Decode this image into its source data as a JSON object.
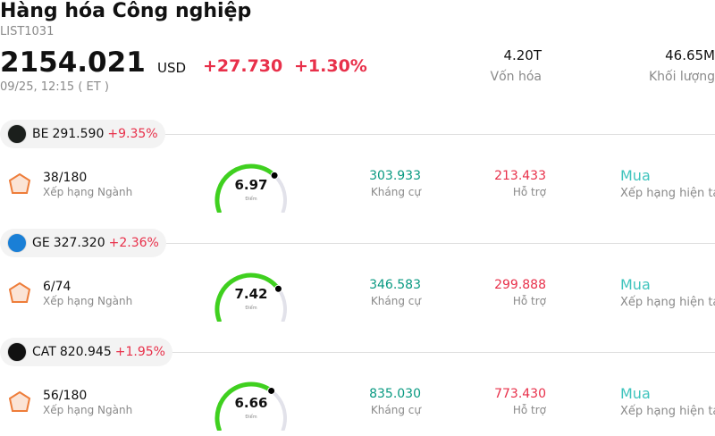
{
  "header": {
    "title": "Hàng hóa Công nghiệp",
    "code": "LIST1031",
    "price": "2154.021",
    "currency": "USD",
    "change": "+27.730",
    "change_percent": "+1.30%",
    "time": "09/25, 12:15  ( ET )",
    "stats": [
      {
        "value": "4.20T",
        "label": "Vốn hóa"
      },
      {
        "value": "46.65M",
        "label": "Khối lượng"
      }
    ]
  },
  "stocks": [
    {
      "ticker": "BE",
      "price": "291.590",
      "change": "+9.35%",
      "rank": "38/180",
      "rank_label": "Xếp hạng Ngành",
      "score": 6.97,
      "score_label": "Điểm",
      "resistance": "303.933",
      "resistance_label": "Kháng cự",
      "support": "213.433",
      "support_label": "Hỗ trợ",
      "rating": "Mua",
      "rating_label": "Xếp hạng hiện tại"
    },
    {
      "ticker": "GE",
      "price": "327.320",
      "change": "+2.36%",
      "rank": "6/74",
      "rank_label": "Xếp hạng Ngành",
      "score": 7.42,
      "score_label": "Điểm",
      "resistance": "346.583",
      "resistance_label": "Kháng cự",
      "support": "299.888",
      "support_label": "Hỗ trợ",
      "rating": "Mua",
      "rating_label": "Xếp hạng hiện tại"
    },
    {
      "ticker": "CAT",
      "price": "820.945",
      "change": "+1.95%",
      "rank": "56/180",
      "rank_label": "Xếp hạng Ngành",
      "score": 6.66,
      "score_label": "Điểm",
      "resistance": "835.030",
      "resistance_label": "Kháng cự",
      "support": "773.430",
      "support_label": "Hỗ trợ",
      "rating": "Mua",
      "rating_label": "Xếp hạng hiện tại"
    }
  ]
}
